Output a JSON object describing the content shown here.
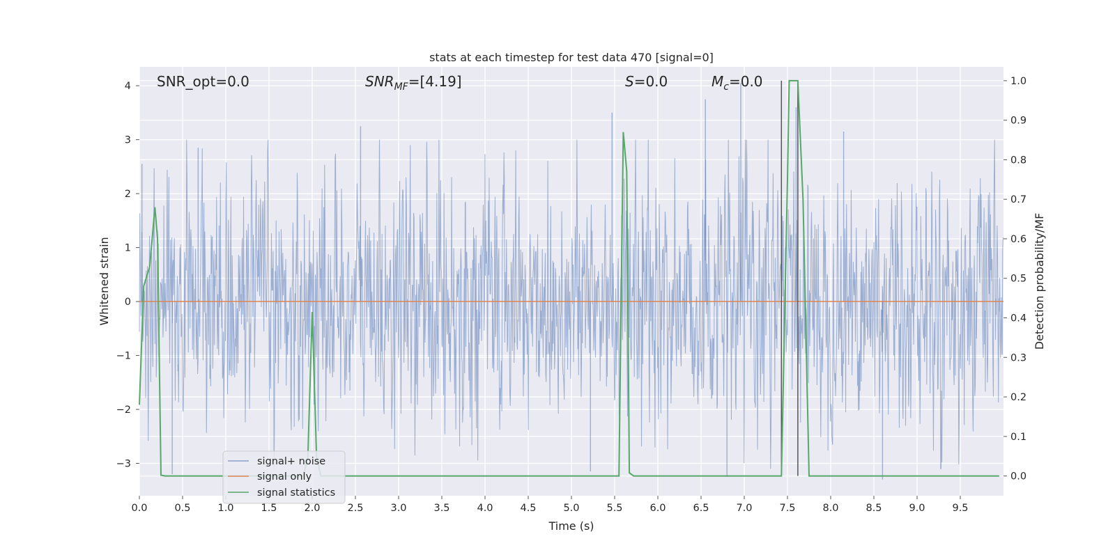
{
  "chart_data": {
    "type": "line",
    "title": "stats at each timestep for test data 470 [signal=0]",
    "xlabel": "Time (s)",
    "ylabel": "Whitened strain",
    "y2label": "Detection probability/MF",
    "xlim": [
      0.0,
      10.0
    ],
    "ylim": [
      -3.6,
      4.35
    ],
    "y2lim": [
      -0.05,
      1.035
    ],
    "x_ticks": [
      "0.0",
      "0.5",
      "1.0",
      "1.5",
      "2.0",
      "2.5",
      "3.0",
      "3.5",
      "4.0",
      "4.5",
      "5.0",
      "5.5",
      "6.0",
      "6.5",
      "7.0",
      "7.5",
      "8.0",
      "8.5",
      "9.0",
      "9.5"
    ],
    "y_ticks": [
      "−3",
      "−2",
      "−1",
      "0",
      "1",
      "2",
      "3",
      "4"
    ],
    "y2_ticks": [
      "0.0",
      "0.1",
      "0.2",
      "0.3",
      "0.4",
      "0.5",
      "0.6",
      "0.7",
      "0.8",
      "0.9",
      "1.0"
    ],
    "grid": true,
    "legend_position": "lower-left",
    "annotations": {
      "snr_opt": "SNR_opt=0.0",
      "snr_mf_main": "SNR",
      "snr_mf_sub": "MF",
      "snr_mf_rest": "=[4.19]",
      "s_main": "S",
      "s_rest": "=0.0",
      "mc_main": "M",
      "mc_sub": "c",
      "mc_rest": "=0.0"
    },
    "series": [
      {
        "name": "signal+ noise",
        "color": "#4c72b0",
        "description": "whitened strain noise, approx. range -3.3 to 4.0, std ~1",
        "peaks": [
          [
            0.03,
            2.55
          ],
          [
            0.68,
            2.85
          ],
          [
            2.56,
            3.25
          ],
          [
            5.47,
            3.5
          ],
          [
            6.55,
            3.75
          ],
          [
            6.96,
            4.05
          ],
          [
            7.6,
            3.6
          ],
          [
            8.15,
            3.15
          ],
          [
            0.38,
            -3.2
          ],
          [
            5.22,
            -3.15
          ],
          [
            6.8,
            -3.25
          ],
          [
            8.6,
            -3.3
          ]
        ]
      },
      {
        "name": "signal only",
        "color": "#dd8452",
        "x": [
          0.0,
          10.0
        ],
        "y": [
          0.0,
          0.0
        ]
      },
      {
        "name": "signal statistics",
        "color": "#55a868",
        "x": [
          0.0,
          0.05,
          0.12,
          0.18,
          0.21,
          0.25,
          0.3,
          1.9,
          1.95,
          2.0,
          2.05,
          2.1,
          2.2,
          5.55,
          5.6,
          5.64,
          5.67,
          5.72,
          5.8,
          7.43,
          7.5,
          7.52,
          7.55,
          7.62,
          7.68,
          7.75,
          9.95
        ],
        "y": [
          0.18,
          0.48,
          0.53,
          0.68,
          0.6,
          0.002,
          0.0,
          0.0,
          0.05,
          0.415,
          0.05,
          0.0,
          0.0,
          0.0,
          0.87,
          0.77,
          0.008,
          0.0,
          0.0,
          0.0,
          0.75,
          1.0,
          1.0,
          1.0,
          0.7,
          0.0,
          0.0
        ]
      }
    ],
    "vlines": [
      7.43,
      7.62
    ]
  }
}
